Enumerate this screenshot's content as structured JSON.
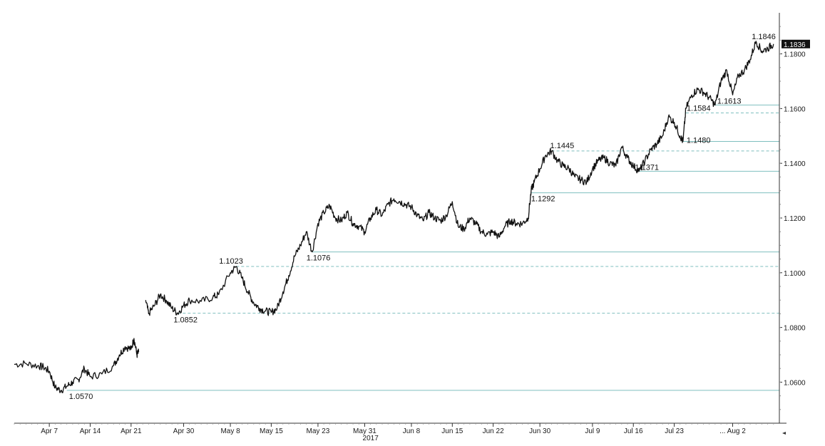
{
  "chart_data": {
    "type": "line",
    "title": "",
    "xlabel": "",
    "ylabel": "",
    "year_label": "2017",
    "ylim": [
      1.045,
      1.195
    ],
    "y_ticks": [
      "1.0600",
      "1.0800",
      "1.1000",
      "1.1200",
      "1.1400",
      "1.1600",
      "1.1800"
    ],
    "x_ticks": [
      {
        "label": "Apr 7",
        "day": 6
      },
      {
        "label": "Apr 14",
        "day": 13
      },
      {
        "label": "Apr 21",
        "day": 20
      },
      {
        "label": "Apr 30",
        "day": 29
      },
      {
        "label": "May 8",
        "day": 37
      },
      {
        "label": "May 15",
        "day": 44
      },
      {
        "label": "May 23",
        "day": 52
      },
      {
        "label": "May 31",
        "day": 60
      },
      {
        "label": "Jun 8",
        "day": 68
      },
      {
        "label": "Jun 15",
        "day": 75
      },
      {
        "label": "Jun 22",
        "day": 82
      },
      {
        "label": "Jun 30",
        "day": 90
      },
      {
        "label": "Jul 9",
        "day": 99
      },
      {
        "label": "Jul 16",
        "day": 106
      },
      {
        "label": "Jul 23",
        "day": 113
      },
      {
        "label": "... Aug 2",
        "day": 123
      }
    ],
    "series": [
      {
        "x_start_day": 0,
        "points": [
          [
            0,
            1.0665
          ],
          [
            2,
            1.0668
          ],
          [
            4,
            1.066
          ],
          [
            5,
            1.0655
          ],
          [
            6,
            1.064
          ],
          [
            7,
            1.058
          ],
          [
            8,
            1.057
          ],
          [
            9,
            1.0585
          ],
          [
            10,
            1.06
          ],
          [
            11,
            1.061
          ],
          [
            12,
            1.065
          ],
          [
            13,
            1.062
          ],
          [
            15,
            1.063
          ],
          [
            17,
            1.066
          ],
          [
            18,
            1.07
          ],
          [
            19,
            1.073
          ],
          [
            20,
            1.072
          ],
          [
            20.5,
            1.076
          ],
          [
            21,
            1.07
          ],
          [
            21.3,
            1.071
          ],
          [
            21.4,
            null
          ],
          [
            22.5,
            1.09
          ],
          [
            23,
            1.085
          ],
          [
            24,
            1.088
          ],
          [
            25,
            1.092
          ],
          [
            26,
            1.09
          ],
          [
            27,
            1.087
          ],
          [
            28,
            1.0852
          ],
          [
            29,
            1.088
          ],
          [
            30,
            1.09
          ],
          [
            32,
            1.0895
          ],
          [
            34,
            1.091
          ],
          [
            35,
            1.092
          ],
          [
            37,
            1.1
          ],
          [
            38,
            1.1023
          ],
          [
            39,
            1.098
          ],
          [
            40,
            1.093
          ],
          [
            41,
            1.089
          ],
          [
            42,
            1.087
          ],
          [
            43,
            1.086
          ],
          [
            44,
            1.0855
          ],
          [
            45,
            1.087
          ],
          [
            46,
            1.093
          ],
          [
            47,
            1.099
          ],
          [
            48,
            1.106
          ],
          [
            49,
            1.11
          ],
          [
            50,
            1.115
          ],
          [
            51,
            1.1076
          ],
          [
            52,
            1.118
          ],
          [
            53,
            1.122
          ],
          [
            54,
            1.1245
          ],
          [
            55,
            1.12
          ],
          [
            56,
            1.119
          ],
          [
            57,
            1.122
          ],
          [
            58,
            1.118
          ],
          [
            59,
            1.117
          ],
          [
            60,
            1.115
          ],
          [
            61,
            1.12
          ],
          [
            62,
            1.123
          ],
          [
            63,
            1.121
          ],
          [
            64,
            1.125
          ],
          [
            65,
            1.127
          ],
          [
            66,
            1.126
          ],
          [
            67,
            1.125
          ],
          [
            68,
            1.124
          ],
          [
            69,
            1.121
          ],
          [
            70,
            1.119
          ],
          [
            71,
            1.122
          ],
          [
            72,
            1.12
          ],
          [
            73,
            1.119
          ],
          [
            74,
            1.121
          ],
          [
            75,
            1.126
          ],
          [
            76,
            1.117
          ],
          [
            77,
            1.116
          ],
          [
            78,
            1.12
          ],
          [
            79,
            1.118
          ],
          [
            80,
            1.115
          ],
          [
            81,
            1.114
          ],
          [
            82,
            1.115
          ],
          [
            83,
            1.113
          ],
          [
            84,
            1.117
          ],
          [
            85,
            1.119
          ],
          [
            86,
            1.118
          ],
          [
            87,
            1.118
          ],
          [
            88,
            1.12
          ],
          [
            88.5,
            1.13
          ],
          [
            89,
            1.133
          ],
          [
            90,
            1.138
          ],
          [
            91,
            1.143
          ],
          [
            92,
            1.1445
          ],
          [
            93,
            1.141
          ],
          [
            94,
            1.139
          ],
          [
            95,
            1.138
          ],
          [
            96,
            1.135
          ],
          [
            97,
            1.134
          ],
          [
            98,
            1.133
          ],
          [
            99,
            1.138
          ],
          [
            100,
            1.141
          ],
          [
            101,
            1.142
          ],
          [
            102,
            1.14
          ],
          [
            103,
            1.139
          ],
          [
            104,
            1.146
          ],
          [
            105,
            1.142
          ],
          [
            106,
            1.139
          ],
          [
            107,
            1.1371
          ],
          [
            108,
            1.141
          ],
          [
            109,
            1.145
          ],
          [
            110,
            1.147
          ],
          [
            111,
            1.15
          ],
          [
            112,
            1.157
          ],
          [
            113,
            1.155
          ],
          [
            114,
            1.15
          ],
          [
            114.5,
            1.148
          ],
          [
            115,
            1.16
          ],
          [
            116,
            1.165
          ],
          [
            117,
            1.167
          ],
          [
            118,
            1.166
          ],
          [
            119,
            1.164
          ],
          [
            120,
            1.1613
          ],
          [
            121,
            1.17
          ],
          [
            122,
            1.174
          ],
          [
            123,
            1.165
          ],
          [
            124,
            1.172
          ],
          [
            125,
            1.174
          ],
          [
            126,
            1.178
          ],
          [
            127,
            1.1846
          ],
          [
            128,
            1.181
          ],
          [
            129,
            1.182
          ],
          [
            130,
            1.1836
          ]
        ]
      }
    ],
    "levels": [
      {
        "label": "1.0570",
        "value": 1.057,
        "style": "solid",
        "from_day": 9
      },
      {
        "label": "1.0852",
        "value": 1.0852,
        "style": "dashed",
        "from_day": 28
      },
      {
        "label": "1.1023",
        "value": 1.1023,
        "style": "dashed",
        "from_day": 38
      },
      {
        "label": "1.1076",
        "value": 1.1076,
        "style": "solid",
        "from_day": 51
      },
      {
        "label": "1.1292",
        "value": 1.1292,
        "style": "solid",
        "from_day": 88.5
      },
      {
        "label": "1.1371",
        "value": 1.1371,
        "style": "solid",
        "from_day": 107
      },
      {
        "label": "1.1445",
        "value": 1.1445,
        "style": "dashed",
        "from_day": 92
      },
      {
        "label": "1.1480",
        "value": 1.148,
        "style": "solid",
        "from_day": 114.5
      },
      {
        "label": "1.1584",
        "value": 1.1584,
        "style": "dashed",
        "from_day": 115
      },
      {
        "label": "1.1613",
        "value": 1.1613,
        "style": "solid",
        "from_day": 120
      }
    ],
    "high_label": {
      "label": "1.1846",
      "value": 1.1846,
      "day": 127
    },
    "last_price": {
      "label": "1.1836",
      "value": 1.1836
    },
    "colors": {
      "line": "#111111",
      "level": "#7fbfbf",
      "axis": "#333333",
      "badge": "#111111"
    }
  }
}
